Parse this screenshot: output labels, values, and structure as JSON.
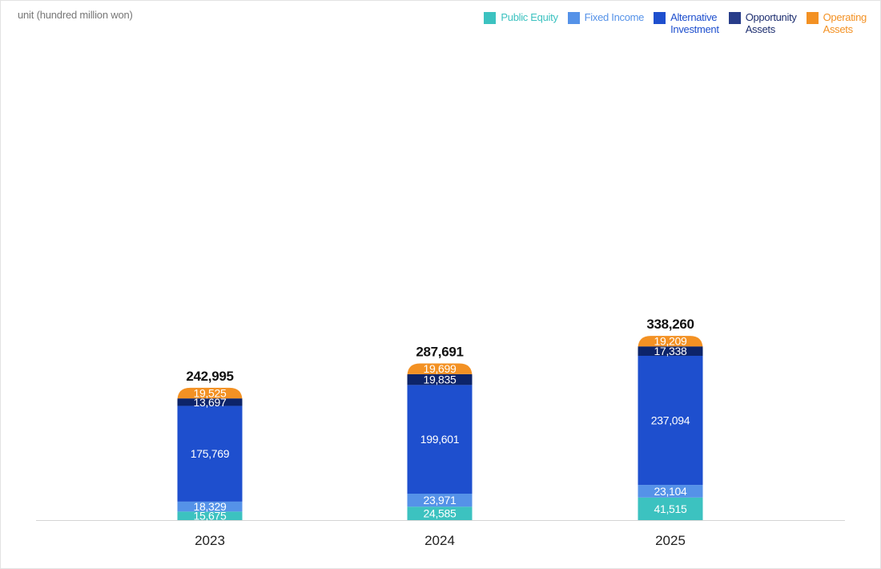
{
  "unit_label": "unit (hundred million won)",
  "legend": [
    {
      "label": "Public Equity",
      "color": "#3cc2c0",
      "text_color": "#3cc2c0"
    },
    {
      "label": "Fixed Income",
      "color": "#5592e8",
      "text_color": "#5592e8"
    },
    {
      "label": "Alternative\nInvestment",
      "color": "#1e4fce",
      "text_color": "#1e4fce"
    },
    {
      "label": "Opportunity\nAssets",
      "color": "#283d8a",
      "text_color": "#1e2f70"
    },
    {
      "label": "Operating\nAssets",
      "color": "#f39123",
      "text_color": "#f39123"
    }
  ],
  "chart_data": {
    "type": "bar",
    "stacked": true,
    "categories": [
      "2023",
      "2024",
      "2025"
    ],
    "totals": [
      "242,995",
      "287,691",
      "338,260"
    ],
    "series": [
      {
        "name": "Public Equity",
        "color": "#3cc2c0",
        "values": [
          15675,
          24585,
          41515
        ],
        "labels": [
          "15,675",
          "24,585",
          "41,515"
        ]
      },
      {
        "name": "Fixed Income",
        "color": "#5592e8",
        "values": [
          18329,
          23971,
          23104
        ],
        "labels": [
          "18,329",
          "23,971",
          "23,104"
        ]
      },
      {
        "name": "Alternative Investment",
        "color": "#1e4fce",
        "values": [
          175769,
          199601,
          237094
        ],
        "labels": [
          "175,769",
          "199,601",
          "237,094"
        ]
      },
      {
        "name": "Opportunity Assets",
        "color": "#0d2469",
        "values": [
          13697,
          19835,
          17338
        ],
        "labels": [
          "13,697",
          "19,835",
          "17,338"
        ]
      },
      {
        "name": "Operating Assets",
        "color": "#f39123",
        "values": [
          19525,
          19699,
          19209
        ],
        "labels": [
          "19,525",
          "19,699",
          "19,209"
        ]
      }
    ],
    "grid": false,
    "legend_position": "top-right"
  }
}
